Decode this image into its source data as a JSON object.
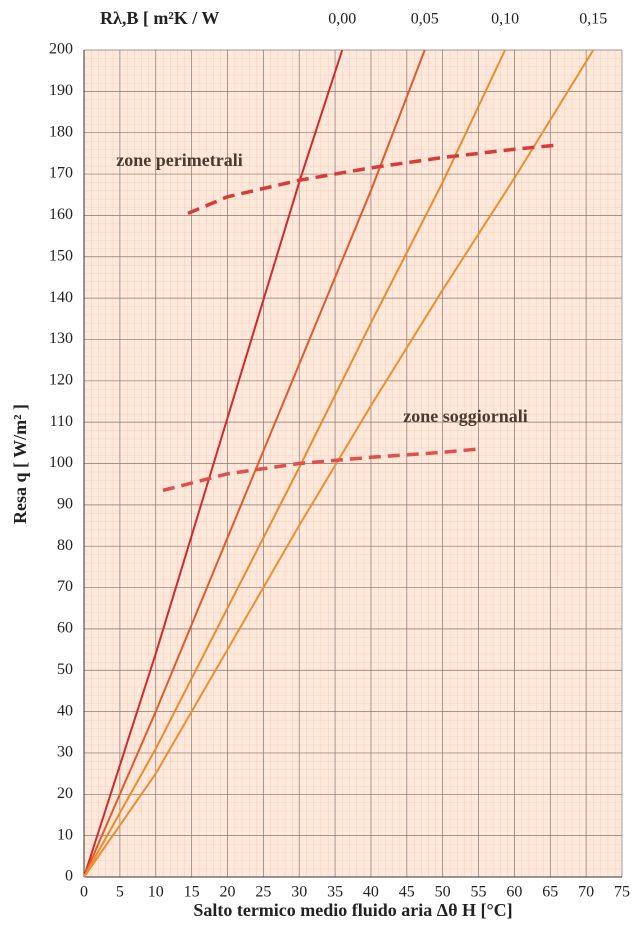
{
  "chart_data": {
    "type": "line",
    "top_axis_label": "Rλ,B  [ m²K / W",
    "xlabel": "Salto termico medio fluido aria  Δθ H [°C]",
    "ylabel": "Resa q  [ W/m² ]",
    "xlim": [
      0,
      75
    ],
    "ylim": [
      0,
      200
    ],
    "xticks": [
      0,
      5,
      10,
      15,
      20,
      25,
      30,
      35,
      40,
      45,
      50,
      55,
      60,
      65,
      70,
      75
    ],
    "yticks": [
      0,
      10,
      20,
      30,
      40,
      50,
      60,
      70,
      80,
      90,
      100,
      110,
      120,
      130,
      140,
      150,
      160,
      170,
      180,
      190,
      200
    ],
    "grid": true,
    "series": [
      {
        "name": "0,00",
        "color": "#d4282e",
        "x": [
          0,
          10,
          20,
          30,
          36
        ],
        "values": [
          0,
          54,
          111,
          168,
          200
        ]
      },
      {
        "name": "0,05",
        "color": "#e25a2c",
        "x": [
          0,
          10,
          20,
          30,
          40,
          47.5
        ],
        "values": [
          0,
          40,
          82,
          124,
          166,
          200
        ]
      },
      {
        "name": "0,10",
        "color": "#ec8a2c",
        "x": [
          0,
          10,
          20,
          30,
          40,
          50,
          58.7
        ],
        "values": [
          0,
          31,
          65,
          99,
          134,
          168,
          200
        ]
      },
      {
        "name": "0,15",
        "color": "#ee8e2e",
        "x": [
          0,
          10,
          20,
          30,
          40,
          50,
          60,
          71
        ],
        "values": [
          0,
          25,
          55,
          85,
          114,
          142,
          169,
          200
        ]
      }
    ],
    "zones": [
      {
        "label": "zone perimetrali",
        "color": "#d93a3a",
        "x": [
          14.5,
          20,
          30,
          40,
          50,
          60,
          66
        ],
        "values": [
          160.5,
          164.5,
          168.5,
          171.5,
          174,
          176,
          177
        ]
      },
      {
        "label": "zone soggiornali",
        "color": "#e05050",
        "x": [
          11,
          20,
          30,
          40,
          50,
          55
        ],
        "values": [
          93.5,
          97.5,
          100,
          101.5,
          102.7,
          103.5
        ]
      }
    ]
  }
}
